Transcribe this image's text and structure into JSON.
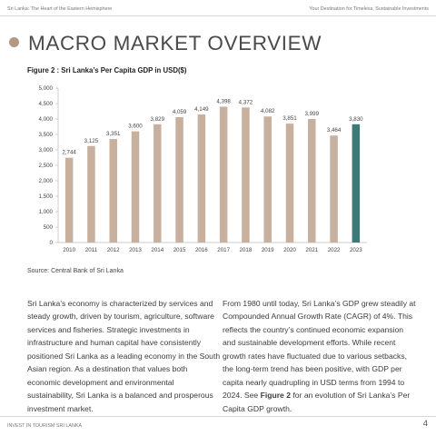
{
  "header": {
    "left": "Sri Lanka: The Heart of the Eastern Hemisphere",
    "right": "Your Destination for Timeless, Sustainable Investments"
  },
  "section": {
    "title": "MACRO MARKET OVERVIEW",
    "bullet_color": "#b09a86"
  },
  "figure": {
    "title": "Figure 2 : Sri Lanka’s Per Capita GDP in USD($)",
    "source": "Source: Central Bank of Sri Lanka"
  },
  "chart_data": {
    "type": "bar",
    "categories": [
      "2010",
      "2011",
      "2012",
      "2013",
      "2014",
      "2015",
      "2016",
      "2017",
      "2018",
      "2019",
      "2020",
      "2021",
      "2022",
      "2023"
    ],
    "values": [
      2744,
      3125,
      3351,
      3600,
      3829,
      4059,
      4149,
      4398,
      4372,
      4082,
      3851,
      3999,
      3464,
      3830
    ],
    "value_labels": [
      "2,744",
      "3,125",
      "3,351",
      "3,600",
      "3,829",
      "4,059",
      "4,149",
      "4,398",
      "4,372",
      "4,082",
      "3,851",
      "3,999",
      "3,464",
      "3,830"
    ],
    "y_ticks": [
      0,
      500,
      1000,
      1500,
      2000,
      2500,
      3000,
      3500,
      4000,
      4500,
      5000
    ],
    "y_tick_labels": [
      "0",
      "500",
      "1,000",
      "1,500",
      "2,000",
      "2,500",
      "3,000",
      "3,500",
      "4,000",
      "4,500",
      "5,000"
    ],
    "ylim": [
      0,
      5000
    ],
    "title": "Sri Lanka’s Per Capita GDP in USD($)",
    "bar_color": "#c7b19e",
    "highlight_color": "#3f7878",
    "highlight_category": "2023",
    "grid": false
  },
  "body": {
    "left_paragraph": "Sri Lanka’s economy is characterized by services and steady growth, driven by tourism, agriculture, software services and fisheries. Strategic investments in infrastructure and human capital have consistently positioned Sri Lanka as a leading economy in the South Asian region. As a destination that values both economic development and environmental sustainability, Sri Lanka is a balanced and prosperous investment market.",
    "right_paragraph_before": "From 1980 until today, Sri Lanka’s GDP grew steadily at Compounded Annual Growth Rate (CAGR) of 4%. This reflects the country’s continued economic expansion and sustainable development efforts. While recent growth rates have fluctuated due to various setbacks, the long-term trend has been positive, with GDP per capita nearly quadrupling in USD terms from 1994 to 2024. See ",
    "right_paragraph_bold": "Figure 2",
    "right_paragraph_after": " for an evolution of Sri Lanka’s Per Capita GDP growth."
  },
  "footer": {
    "left": "INVEST IN TOURISM SRI LANKA",
    "page_number": "4"
  }
}
